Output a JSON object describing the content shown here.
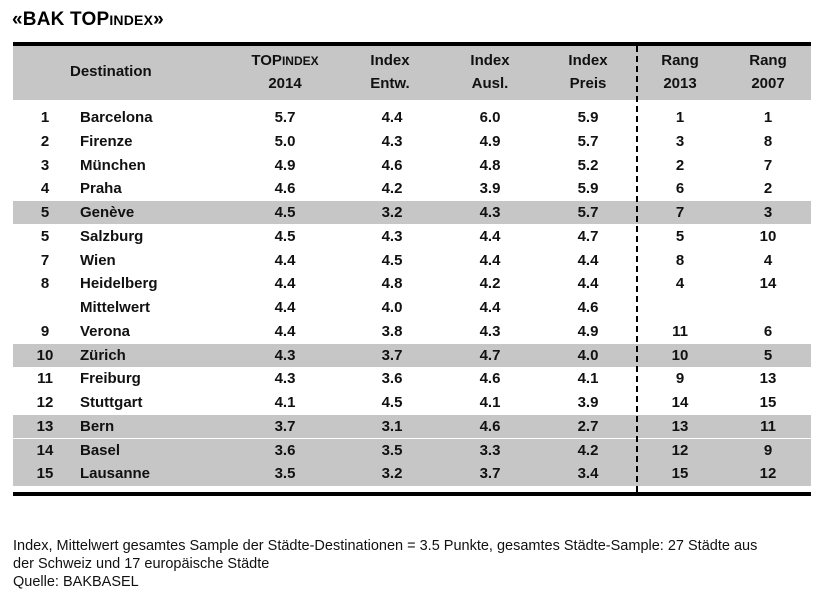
{
  "title": {
    "main": "«BAK TOP",
    "small": "INDEX",
    "end": "»"
  },
  "header": {
    "destination": "Destination",
    "topindex_a": "TOP",
    "topindex_b": "INDEX",
    "topindex_year": "2014",
    "entw_1": "Index",
    "entw_2": "Entw.",
    "ausl_1": "Index",
    "ausl_2": "Ausl.",
    "preis_1": "Index",
    "preis_2": "Preis",
    "rang13_1": "Rang",
    "rang13_2": "2013",
    "rang07_1": "Rang",
    "rang07_2": "2007"
  },
  "chart_data": {
    "type": "table",
    "columns": [
      "",
      "Destination",
      "TOPINDEX 2014",
      "Index Entw.",
      "Index Ausl.",
      "Index Preis",
      "Rang 2013",
      "Rang 2007"
    ],
    "rows": [
      {
        "rank": "1",
        "name": "Barcelona",
        "top": "5.7",
        "entw": "4.4",
        "ausl": "6.0",
        "preis": "5.9",
        "r13": "1",
        "r07": "1",
        "shaded": false
      },
      {
        "rank": "2",
        "name": "Firenze",
        "top": "5.0",
        "entw": "4.3",
        "ausl": "4.9",
        "preis": "5.7",
        "r13": "3",
        "r07": "8",
        "shaded": false
      },
      {
        "rank": "3",
        "name": "München",
        "top": "4.9",
        "entw": "4.6",
        "ausl": "4.8",
        "preis": "5.2",
        "r13": "2",
        "r07": "7",
        "shaded": false
      },
      {
        "rank": "4",
        "name": "Praha",
        "top": "4.6",
        "entw": "4.2",
        "ausl": "3.9",
        "preis": "5.9",
        "r13": "6",
        "r07": "2",
        "shaded": false
      },
      {
        "rank": "5",
        "name": "Genève",
        "top": "4.5",
        "entw": "3.2",
        "ausl": "4.3",
        "preis": "5.7",
        "r13": "7",
        "r07": "3",
        "shaded": true
      },
      {
        "rank": "5",
        "name": "Salzburg",
        "top": "4.5",
        "entw": "4.3",
        "ausl": "4.4",
        "preis": "4.7",
        "r13": "5",
        "r07": "10",
        "shaded": false
      },
      {
        "rank": "7",
        "name": "Wien",
        "top": "4.4",
        "entw": "4.5",
        "ausl": "4.4",
        "preis": "4.4",
        "r13": "8",
        "r07": "4",
        "shaded": false
      },
      {
        "rank": "8",
        "name": "Heidelberg",
        "top": "4.4",
        "entw": "4.8",
        "ausl": "4.2",
        "preis": "4.4",
        "r13": "4",
        "r07": "14",
        "shaded": false
      },
      {
        "rank": "",
        "name": "Mittelwert",
        "top": "4.4",
        "entw": "4.0",
        "ausl": "4.4",
        "preis": "4.6",
        "r13": "",
        "r07": "",
        "shaded": false
      },
      {
        "rank": "9",
        "name": "Verona",
        "top": "4.4",
        "entw": "3.8",
        "ausl": "4.3",
        "preis": "4.9",
        "r13": "11",
        "r07": "6",
        "shaded": false
      },
      {
        "rank": "10",
        "name": "Zürich",
        "top": "4.3",
        "entw": "3.7",
        "ausl": "4.7",
        "preis": "4.0",
        "r13": "10",
        "r07": "5",
        "shaded": true
      },
      {
        "rank": "11",
        "name": "Freiburg",
        "top": "4.3",
        "entw": "3.6",
        "ausl": "4.6",
        "preis": "4.1",
        "r13": "9",
        "r07": "13",
        "shaded": false
      },
      {
        "rank": "12",
        "name": "Stuttgart",
        "top": "4.1",
        "entw": "4.5",
        "ausl": "4.1",
        "preis": "3.9",
        "r13": "14",
        "r07": "15",
        "shaded": false
      },
      {
        "rank": "13",
        "name": "Bern",
        "top": "3.7",
        "entw": "3.1",
        "ausl": "4.6",
        "preis": "2.7",
        "r13": "13",
        "r07": "11",
        "shaded": true
      },
      {
        "rank": "14",
        "name": "Basel",
        "top": "3.6",
        "entw": "3.5",
        "ausl": "3.3",
        "preis": "4.2",
        "r13": "12",
        "r07": "9",
        "shaded": true
      },
      {
        "rank": "15",
        "name": "Lausanne",
        "top": "3.5",
        "entw": "3.2",
        "ausl": "3.7",
        "preis": "3.4",
        "r13": "15",
        "r07": "12",
        "shaded": true
      }
    ]
  },
  "footnote": {
    "line1": "Index, Mittelwert gesamtes Sample der Städte-Destinationen = 3.5 Punkte, gesamtes Städte-Sample: 27 Städte aus",
    "line2": "der Schweiz und 17 europäische Städte",
    "line3": "Quelle: BAKBASEL"
  },
  "colors": {
    "band": "#c6c6c6",
    "rule": "#000000"
  }
}
